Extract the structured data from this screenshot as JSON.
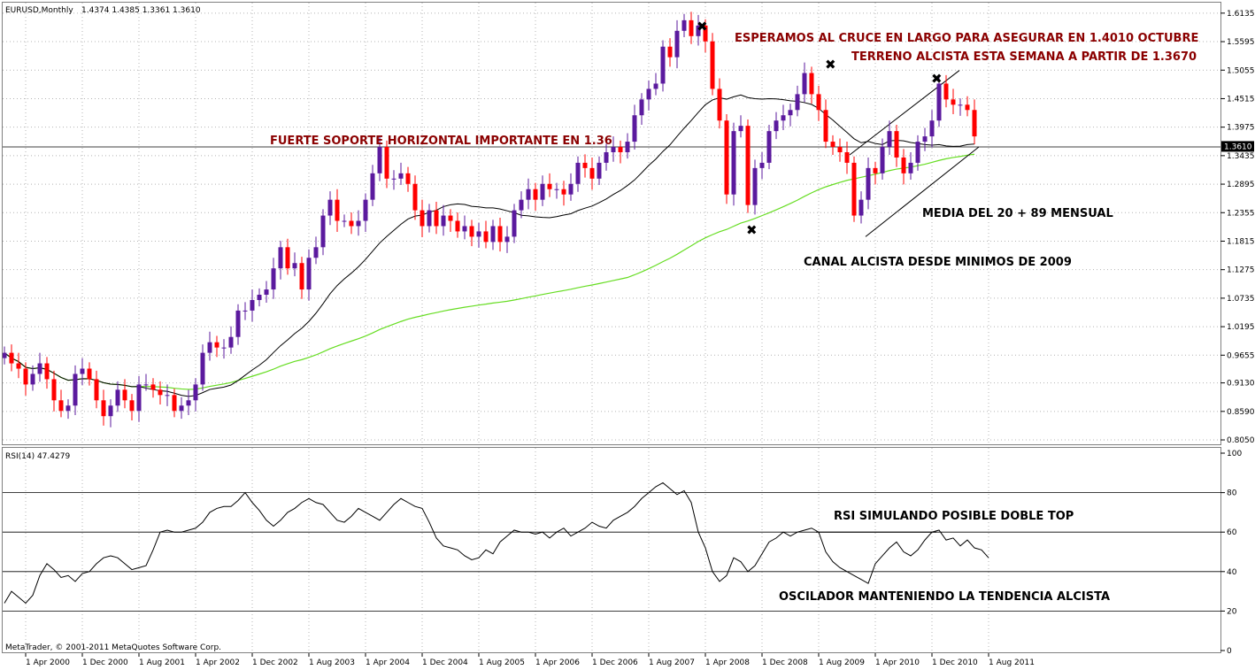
{
  "header": {
    "symbol": "EURUSD,Monthly",
    "ohlc": "1.4374 1.4385 1.3361 1.3610",
    "rsi_label": "RSI(14) 47.4279",
    "copyright": "MetaTrader, © 2001-2011 MetaQuotes Software Corp."
  },
  "colors": {
    "bull": "#5b1a9e",
    "bear": "#ff0000",
    "ma20": "#000000",
    "ma89": "#66dd22",
    "grid": "#b4b4b4",
    "current_price_bg": "#000000"
  },
  "annotations": {
    "top1": "ESPERAMOS AL CRUCE EN LARGO PARA ASEGURAR EN 1.4010 OCTUBRE",
    "top2": "TERRENO ALCISTA ESTA SEMANA A PARTIR DE 1.3670",
    "support": "FUERTE SOPORTE HORIZONTAL IMPORTANTE EN 1.36",
    "media": "MEDIA DEL 20 + 89 MENSUAL",
    "canal": "CANAL ALCISTA DESDE MINIMOS DE 2009",
    "rsi1": "RSI SIMULANDO POSIBLE DOBLE TOP",
    "rsi2": "OSCILADOR MANTENIENDO LA TENDENCIA ALCISTA",
    "x_marker": "✖"
  },
  "chart_data": [
    {
      "type": "candlestick",
      "symbol": "EURUSD",
      "timeframe": "Monthly",
      "ylim": [
        0.8,
        1.63
      ],
      "current_price": "1.3610",
      "y_ticks": [
        "1.6135",
        "1.5595",
        "1.5055",
        "1.4515",
        "1.3975",
        "1.3435",
        "1.2895",
        "1.2355",
        "1.1815",
        "1.1275",
        "1.0735",
        "1.0195",
        "0.9655",
        "0.9130",
        "0.8590",
        "0.8050"
      ],
      "x_ticks": [
        "1 Apr 2000",
        "1 Dec 2000",
        "1 Aug 2001",
        "1 Apr 2002",
        "1 Dec 2002",
        "1 Aug 2003",
        "1 Apr 2004",
        "1 Dec 2004",
        "1 Aug 2005",
        "1 Apr 2006",
        "1 Dec 2006",
        "1 Aug 2007",
        "1 Apr 2008",
        "1 Dec 2008",
        "1 Aug 2009",
        "1 Apr 2010",
        "1 Dec 2010",
        "1 Aug 2011"
      ],
      "first_bar": "2000-01",
      "closes": [
        0.97,
        0.95,
        0.94,
        0.91,
        0.93,
        0.95,
        0.92,
        0.88,
        0.86,
        0.87,
        0.93,
        0.94,
        0.92,
        0.88,
        0.85,
        0.87,
        0.9,
        0.88,
        0.86,
        0.91,
        0.91,
        0.9,
        0.89,
        0.89,
        0.86,
        0.87,
        0.88,
        0.91,
        0.97,
        0.99,
        0.98,
        0.98,
        1.0,
        1.05,
        1.05,
        1.07,
        1.08,
        1.09,
        1.13,
        1.17,
        1.13,
        1.14,
        1.09,
        1.15,
        1.17,
        1.23,
        1.26,
        1.22,
        1.22,
        1.21,
        1.22,
        1.26,
        1.31,
        1.36,
        1.3,
        1.3,
        1.31,
        1.29,
        1.24,
        1.21,
        1.24,
        1.21,
        1.23,
        1.22,
        1.2,
        1.21,
        1.19,
        1.2,
        1.18,
        1.21,
        1.18,
        1.19,
        1.24,
        1.26,
        1.28,
        1.26,
        1.29,
        1.28,
        1.28,
        1.27,
        1.29,
        1.33,
        1.32,
        1.3,
        1.33,
        1.35,
        1.36,
        1.35,
        1.37,
        1.42,
        1.45,
        1.47,
        1.48,
        1.55,
        1.53,
        1.58,
        1.6,
        1.57,
        1.59,
        1.56,
        1.47,
        1.41,
        1.27,
        1.39,
        1.4,
        1.25,
        1.32,
        1.33,
        1.39,
        1.41,
        1.42,
        1.43,
        1.46,
        1.5,
        1.46,
        1.43,
        1.37,
        1.36,
        1.35,
        1.33,
        1.23,
        1.26,
        1.32,
        1.31,
        1.36,
        1.39,
        1.34,
        1.31,
        1.33,
        1.37,
        1.38,
        1.41,
        1.48,
        1.45,
        1.44,
        1.44,
        1.43,
        1.38
      ]
    },
    {
      "type": "line",
      "name": "RSI(14) 47.4279",
      "ylim": [
        0,
        100
      ],
      "levels": [
        20,
        40,
        60,
        80
      ],
      "y_ticks": [
        "100",
        "80",
        "60",
        "40",
        "20",
        "0"
      ],
      "values": [
        24,
        30,
        27,
        24,
        28,
        38,
        44,
        41,
        37,
        38,
        35,
        39,
        40,
        44,
        47,
        48,
        47,
        44,
        41,
        42,
        43,
        51,
        60,
        61,
        60,
        60,
        61,
        62,
        65,
        70,
        72,
        73,
        73,
        76,
        80,
        75,
        71,
        66,
        63,
        66,
        70,
        72,
        75,
        77,
        75,
        74,
        70,
        66,
        65,
        68,
        72,
        70,
        68,
        66,
        70,
        74,
        77,
        75,
        73,
        72,
        65,
        57,
        53,
        52,
        51,
        48,
        46,
        47,
        51,
        49,
        55,
        58,
        61,
        60,
        60,
        59,
        60,
        57,
        60,
        62,
        58,
        60,
        62,
        65,
        63,
        62,
        66,
        68,
        70,
        73,
        77,
        80,
        83,
        85,
        82,
        79,
        81,
        75,
        60,
        52,
        40,
        35,
        38,
        47,
        45,
        40,
        43,
        49,
        55,
        57,
        60,
        58,
        60,
        61,
        62,
        60,
        50,
        45,
        42,
        40,
        38,
        36,
        34,
        44,
        48,
        52,
        55,
        50,
        48,
        51,
        56,
        60,
        61,
        56,
        57,
        53,
        56,
        52,
        51,
        47
      ]
    }
  ]
}
